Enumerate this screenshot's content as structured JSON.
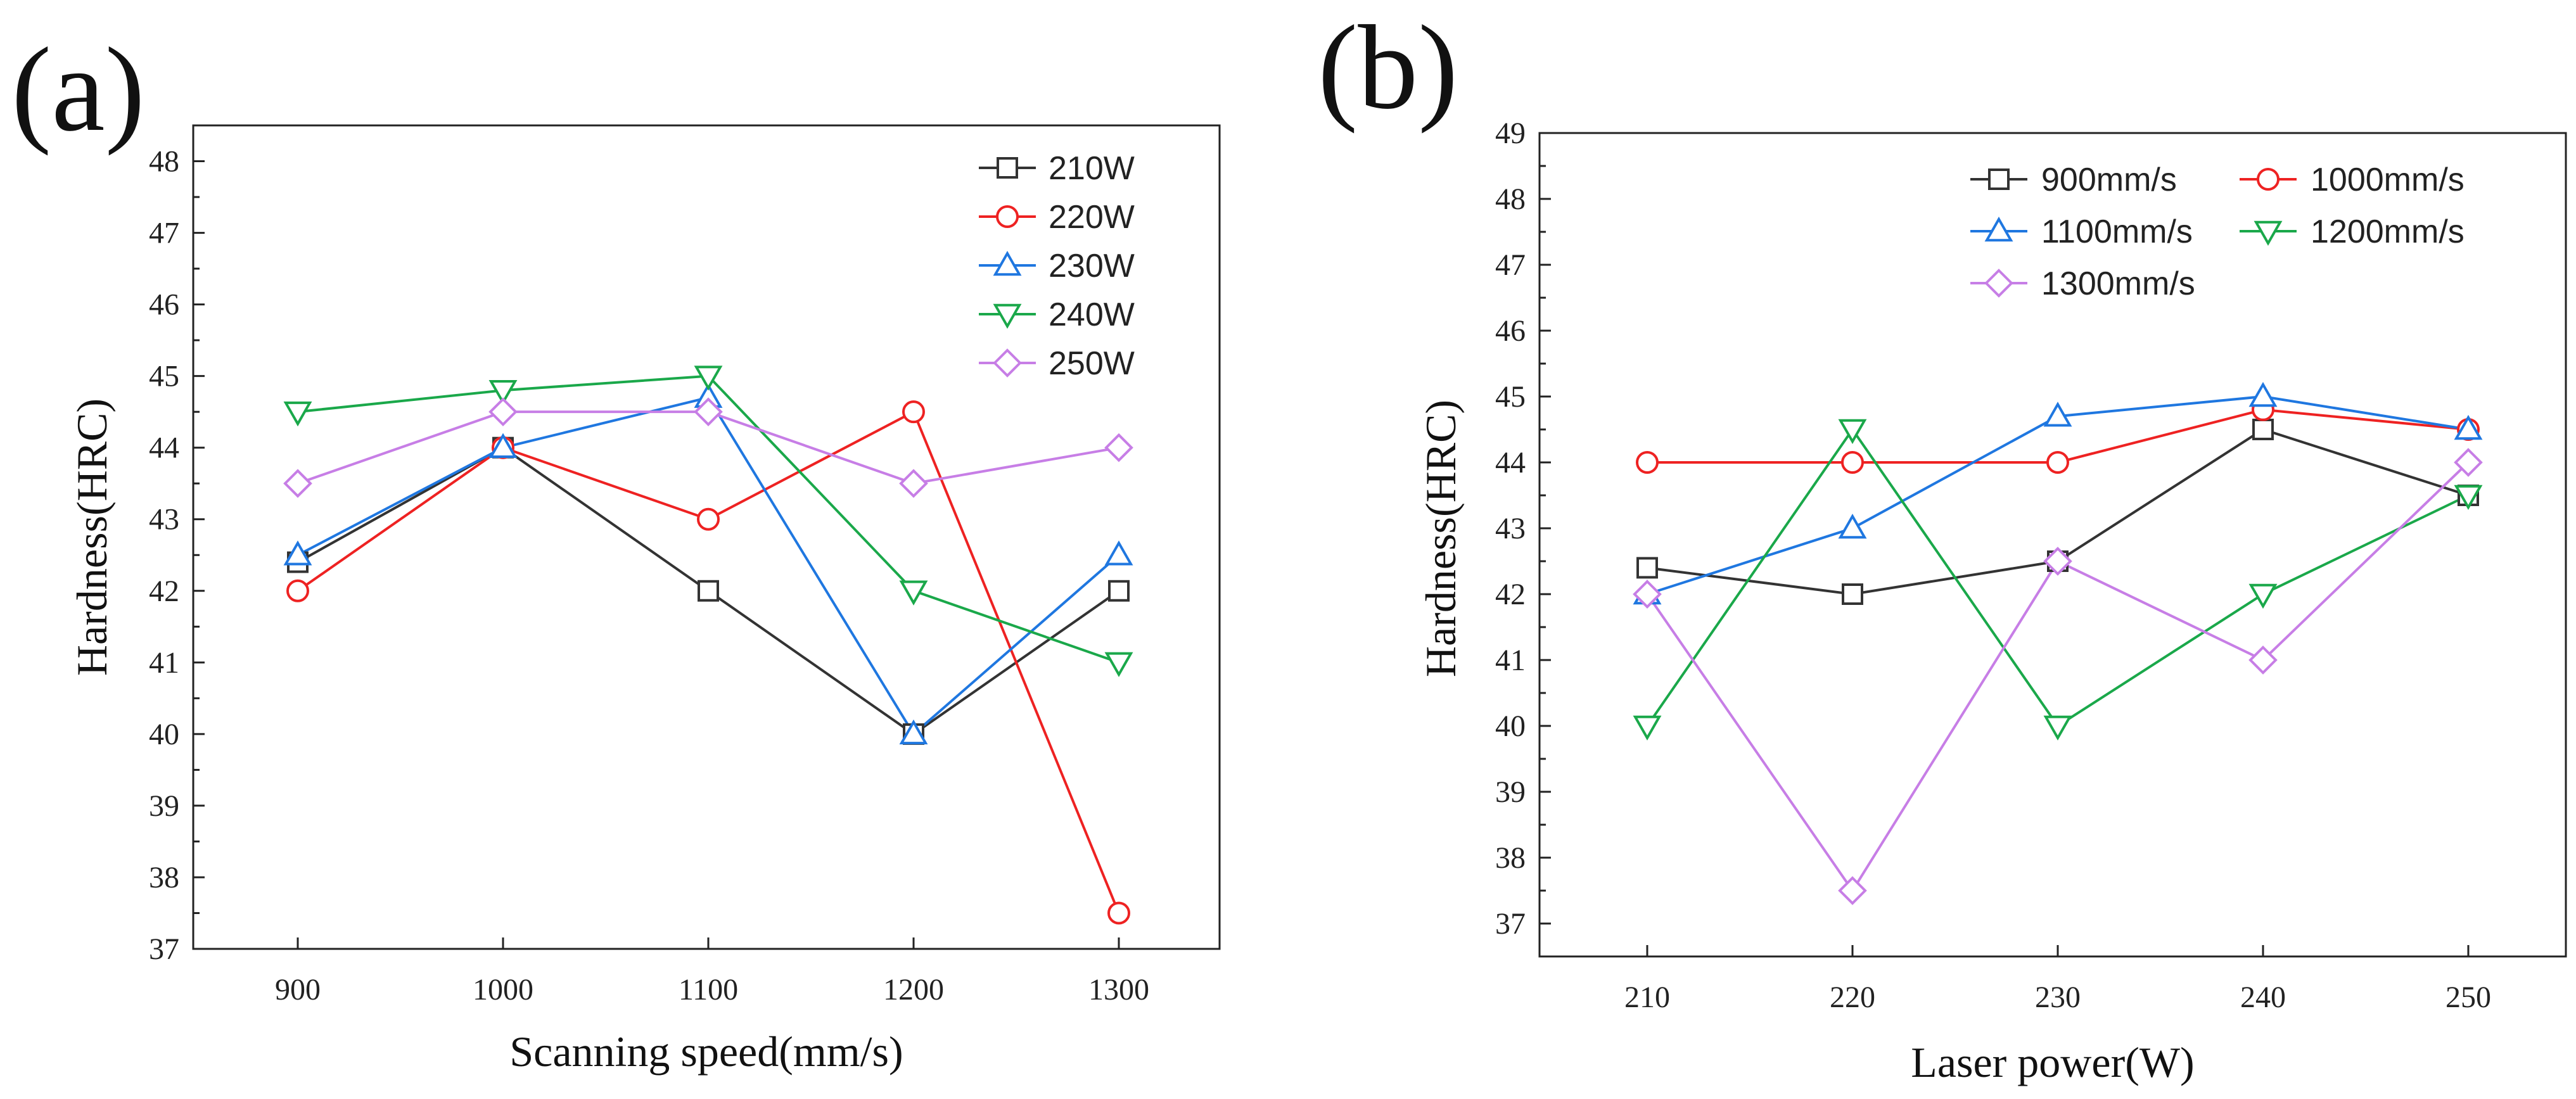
{
  "chart_data": [
    {
      "panel_label": "(a)",
      "type": "line",
      "xlabel": "Scanning speed(mm/s)",
      "ylabel": "Hardness(HRC)",
      "categories": [
        900,
        1000,
        1100,
        1200,
        1300
      ],
      "xtick_labels": [
        "900",
        "1000",
        "1100",
        "1200",
        "1300"
      ],
      "ylim": [
        37,
        48.5
      ],
      "ytick_labels": [
        "37",
        "38",
        "39",
        "40",
        "41",
        "42",
        "43",
        "44",
        "45",
        "46",
        "47",
        "48"
      ],
      "legend_position": "top-right",
      "series": [
        {
          "name": "210W",
          "color": "#333333",
          "marker": "square",
          "values": [
            42.4,
            44,
            42,
            40,
            42
          ]
        },
        {
          "name": "220W",
          "color": "#ee2222",
          "marker": "circle",
          "values": [
            42,
            44,
            43,
            44.5,
            37.5
          ]
        },
        {
          "name": "230W",
          "color": "#1f77e0",
          "marker": "triangle-up",
          "values": [
            42.5,
            44,
            44.7,
            40,
            42.5
          ]
        },
        {
          "name": "240W",
          "color": "#1aa84a",
          "marker": "triangle-down",
          "values": [
            44.5,
            44.8,
            45,
            42,
            41
          ]
        },
        {
          "name": "250W",
          "color": "#c77ee6",
          "marker": "diamond",
          "values": [
            43.5,
            44.5,
            44.5,
            43.5,
            44
          ]
        }
      ]
    },
    {
      "panel_label": "(b)",
      "type": "line",
      "xlabel": "Laser power(W)",
      "ylabel": "Hardness(HRC)",
      "categories": [
        210,
        220,
        230,
        240,
        250
      ],
      "xtick_labels": [
        "210",
        "220",
        "230",
        "240",
        "250"
      ],
      "ylim": [
        36.5,
        49
      ],
      "ytick_labels": [
        "37",
        "38",
        "39",
        "40",
        "41",
        "42",
        "43",
        "44",
        "45",
        "46",
        "47",
        "48",
        "49"
      ],
      "legend_position": "top-right",
      "series": [
        {
          "name": "900mm/s",
          "color": "#333333",
          "marker": "square",
          "values": [
            42.4,
            42,
            42.5,
            44.5,
            43.5
          ]
        },
        {
          "name": "1000mm/s",
          "color": "#ee2222",
          "marker": "circle",
          "values": [
            44,
            44,
            44,
            44.8,
            44.5
          ]
        },
        {
          "name": "1100mm/s",
          "color": "#1f77e0",
          "marker": "triangle-up",
          "values": [
            42,
            43,
            44.7,
            45,
            44.5
          ]
        },
        {
          "name": "1200mm/s",
          "color": "#1aa84a",
          "marker": "triangle-down",
          "values": [
            40,
            44.5,
            40,
            42,
            43.5
          ]
        },
        {
          "name": "1300mm/s",
          "color": "#c77ee6",
          "marker": "diamond",
          "values": [
            42,
            37.5,
            42.5,
            41,
            44
          ]
        }
      ]
    }
  ]
}
